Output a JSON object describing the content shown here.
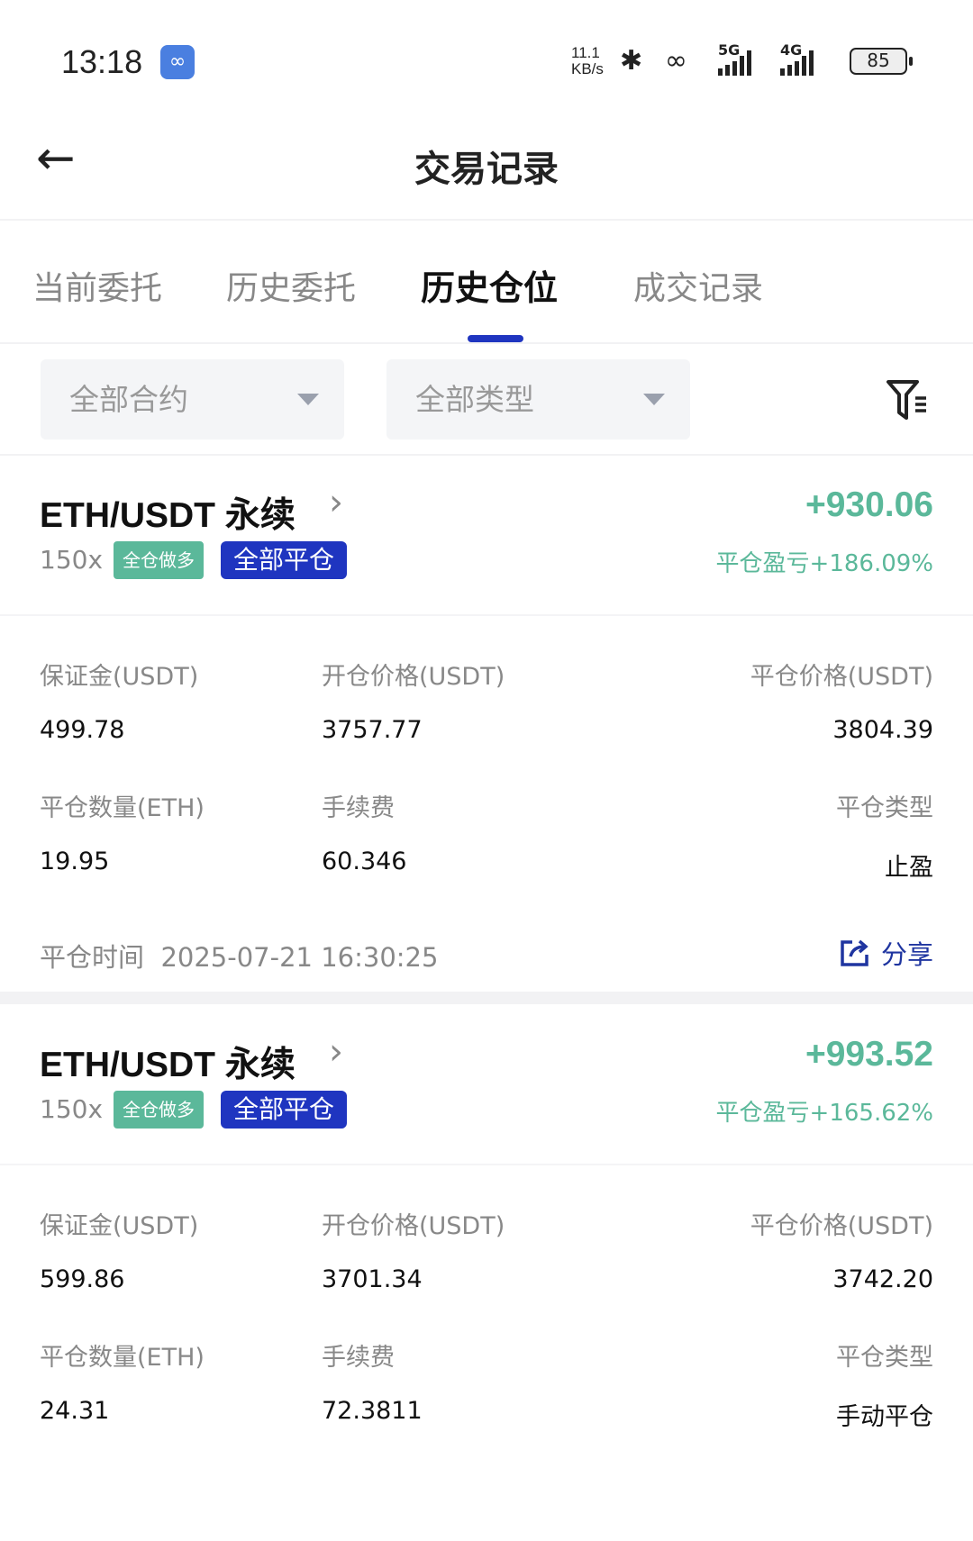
{
  "status_bar": {
    "time": "13:18",
    "speed_value": "11.1",
    "speed_unit": "KB/s",
    "net1": "5G",
    "net2": "4G",
    "battery": "85"
  },
  "header": {
    "title": "交易记录"
  },
  "tabs": [
    {
      "label": "当前委托",
      "active": false
    },
    {
      "label": "历史委托",
      "active": false
    },
    {
      "label": "历史仓位",
      "active": true
    },
    {
      "label": "成交记录",
      "active": false
    }
  ],
  "filters": {
    "contract": "全部合约",
    "type": "全部类型"
  },
  "accent_color": "#1f35c0",
  "profit_color": "#5bb89a",
  "labels": {
    "margin": "保证金(USDT)",
    "open_price": "开仓价格(USDT)",
    "close_price": "平仓价格(USDT)",
    "close_qty": "平仓数量(ETH)",
    "fee": "手续费",
    "close_type": "平仓类型",
    "close_time": "平仓时间",
    "share": "分享",
    "pnl_prefix": "平仓盈亏"
  },
  "positions": [
    {
      "pair": "ETH/USDT 永续",
      "leverage": "150x",
      "mode_tag": "全仓做多",
      "status_tag": "全部平仓",
      "pnl": "+930.06",
      "pnl_pct": "平仓盈亏+186.09%",
      "margin": "499.78",
      "open_price": "3757.77",
      "close_price": "3804.39",
      "close_qty": "19.95",
      "fee": "60.346",
      "close_type": "止盈",
      "close_time": "2025-07-21 16:30:25"
    },
    {
      "pair": "ETH/USDT 永续",
      "leverage": "150x",
      "mode_tag": "全仓做多",
      "status_tag": "全部平仓",
      "pnl": "+993.52",
      "pnl_pct": "平仓盈亏+165.62%",
      "margin": "599.86",
      "open_price": "3701.34",
      "close_price": "3742.20",
      "close_qty": "24.31",
      "fee": "72.3811",
      "close_type": "手动平仓"
    }
  ]
}
